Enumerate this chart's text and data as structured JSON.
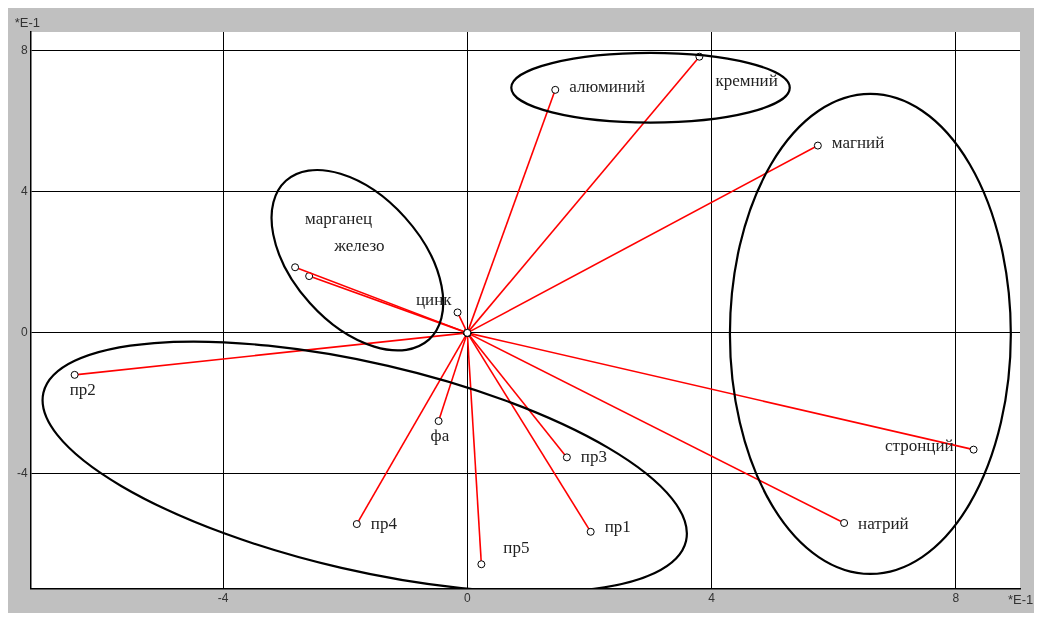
{
  "chart_data": {
    "type": "line",
    "xlabel": "*E-1",
    "ylabel": "*E-1",
    "xlim": [
      -7.15,
      9.05
    ],
    "ylim": [
      -7.25,
      8.53
    ],
    "xticks": [
      -4,
      0,
      4,
      8
    ],
    "yticks": [
      -4,
      0,
      4,
      8
    ],
    "grid": true,
    "legend": false,
    "marker": "circle",
    "line_style": "solid",
    "series": [
      {
        "name": "алюминий",
        "color": "#ff0000",
        "x": [
          0,
          1.44
        ],
        "values": [
          0,
          6.89
        ]
      },
      {
        "name": "кремний",
        "color": "#ff0000",
        "x": [
          0,
          3.8
        ],
        "values": [
          0,
          7.83
        ]
      },
      {
        "name": "магний",
        "color": "#ff0000",
        "x": [
          0,
          5.74
        ],
        "values": [
          0,
          5.31
        ]
      },
      {
        "name": "марганец",
        "color": "#ff0000",
        "x": [
          0,
          -2.82
        ],
        "values": [
          0,
          1.86
        ]
      },
      {
        "name": "железо",
        "color": "#ff0000",
        "x": [
          0,
          -2.59
        ],
        "values": [
          0,
          1.61
        ]
      },
      {
        "name": "цинк",
        "color": "#ff0000",
        "x": [
          0,
          -0.16
        ],
        "values": [
          0,
          0.58
        ]
      },
      {
        "name": "пр2",
        "color": "#ff0000",
        "x": [
          0,
          -6.43
        ],
        "values": [
          0,
          -1.19
        ]
      },
      {
        "name": "фа",
        "color": "#ff0000",
        "x": [
          0,
          -0.47
        ],
        "values": [
          0,
          -2.5
        ]
      },
      {
        "name": "пр3",
        "color": "#ff0000",
        "x": [
          0,
          1.63
        ],
        "values": [
          0,
          -3.53
        ]
      },
      {
        "name": "пр4",
        "color": "#ff0000",
        "x": [
          0,
          -1.81
        ],
        "values": [
          0,
          -5.42
        ]
      },
      {
        "name": "пр1",
        "color": "#ff0000",
        "x": [
          0,
          2.02
        ],
        "values": [
          0,
          -5.64
        ]
      },
      {
        "name": "пр5",
        "color": "#ff0000",
        "x": [
          0,
          0.23
        ],
        "values": [
          0,
          -6.56
        ]
      },
      {
        "name": "стронций",
        "color": "#ff0000",
        "x": [
          0,
          8.29
        ],
        "values": [
          0,
          -3.31
        ]
      },
      {
        "name": "натрий",
        "color": "#ff0000",
        "x": [
          0,
          6.17
        ],
        "values": [
          0,
          -5.39
        ]
      }
    ]
  }
}
